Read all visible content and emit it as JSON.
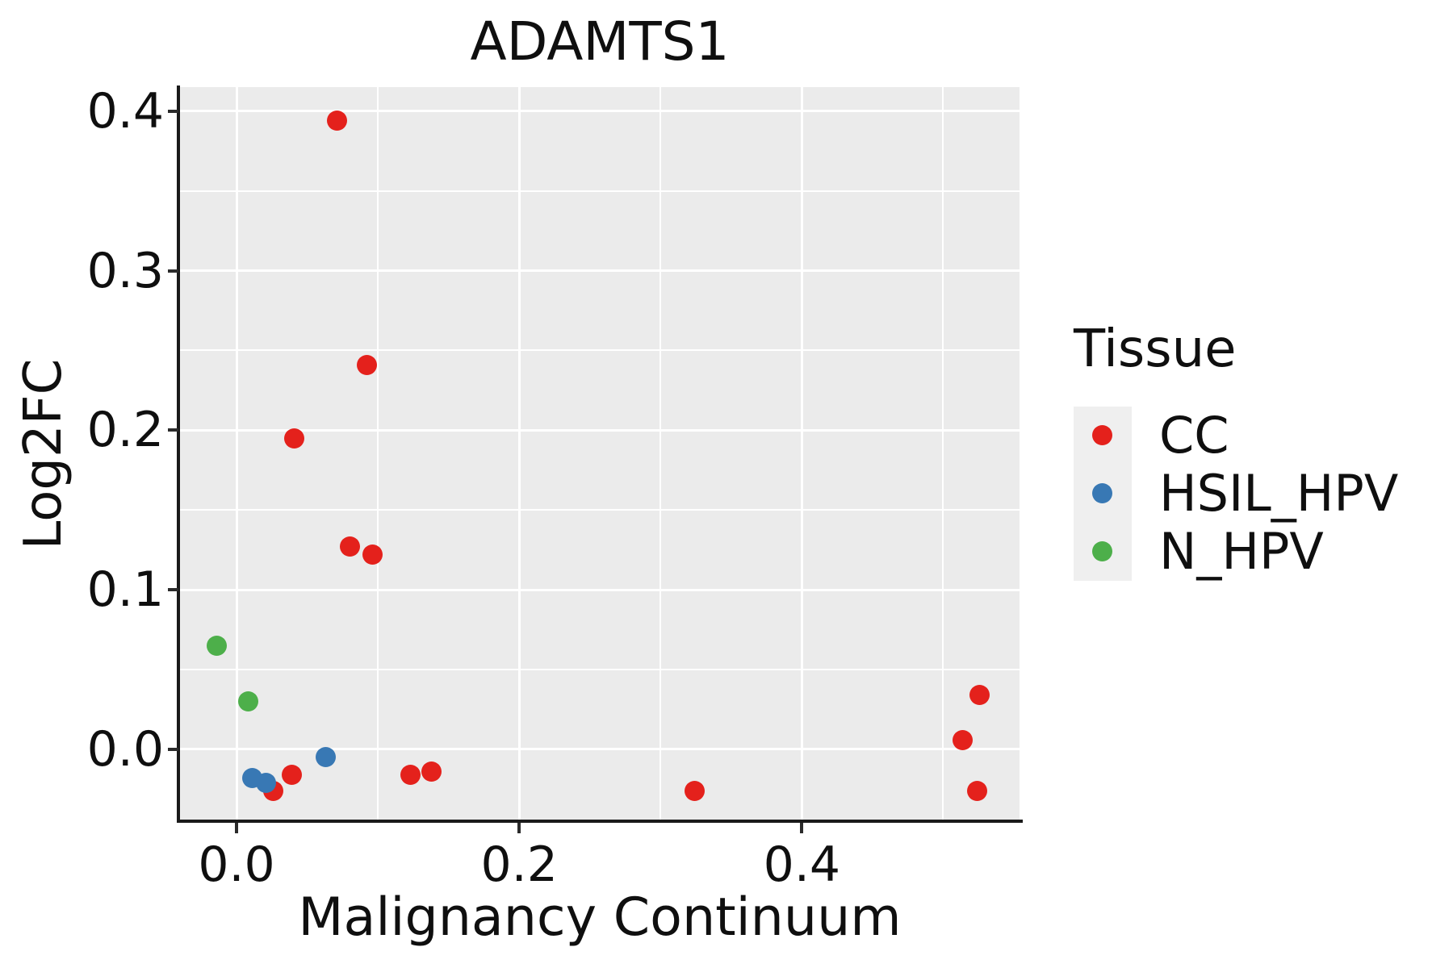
{
  "chart_data": {
    "type": "scatter",
    "title": "ADAMTS1",
    "xlabel": "Malignancy Continuum",
    "ylabel": "Log2FC",
    "xlim": [
      -0.04,
      0.554
    ],
    "ylim": [
      -0.045,
      0.415
    ],
    "x_major_ticks": [
      0.0,
      0.2,
      0.4
    ],
    "x_minor_ticks": [
      0.1,
      0.3,
      0.5
    ],
    "x_tick_labels": [
      "0.0",
      "0.2",
      "0.4"
    ],
    "y_major_ticks": [
      0.0,
      0.1,
      0.2,
      0.3,
      0.4
    ],
    "y_minor_ticks": [
      0.05,
      0.15,
      0.25,
      0.35
    ],
    "y_tick_labels": [
      "0.0",
      "0.1",
      "0.2",
      "0.3",
      "0.4"
    ],
    "grid": true,
    "panel_background": "#ebebeb",
    "gridline_color": "#ffffff",
    "legend_position": "right",
    "series": [
      {
        "name": "CC",
        "color": "#e4211c",
        "points": [
          [
            0.071,
            0.394
          ],
          [
            0.092,
            0.241
          ],
          [
            0.041,
            0.195
          ],
          [
            0.08,
            0.127
          ],
          [
            0.096,
            0.122
          ],
          [
            0.026,
            -0.026
          ],
          [
            0.039,
            -0.016
          ],
          [
            0.123,
            -0.016
          ],
          [
            0.138,
            -0.014
          ],
          [
            0.324,
            -0.026
          ],
          [
            0.514,
            0.006
          ],
          [
            0.526,
            0.034
          ],
          [
            0.524,
            -0.026
          ]
        ]
      },
      {
        "name": "HSIL_HPV",
        "color": "#3878b4",
        "points": [
          [
            0.011,
            -0.018
          ],
          [
            0.021,
            -0.021
          ],
          [
            0.063,
            -0.005
          ]
        ]
      },
      {
        "name": "N_HPV",
        "color": "#4daf4a",
        "points": [
          [
            -0.014,
            0.065
          ],
          [
            0.008,
            0.03
          ]
        ]
      }
    ]
  },
  "legend": {
    "title": "Tissue"
  }
}
